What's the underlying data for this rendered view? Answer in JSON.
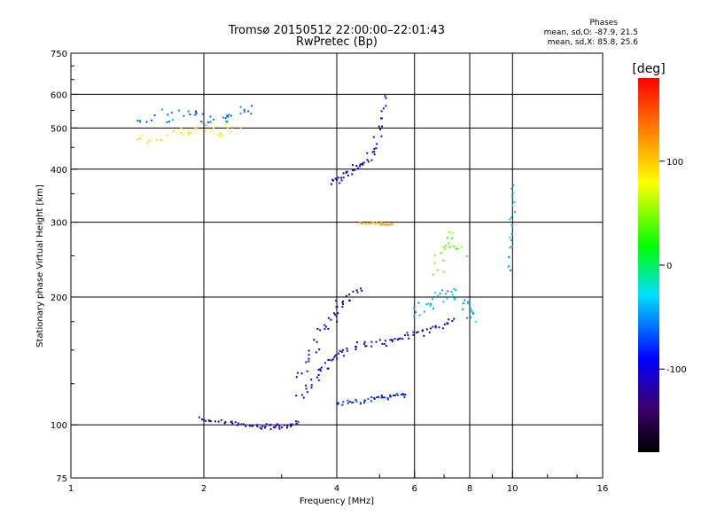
{
  "header": {
    "title_line1": "Tromsø 20150512 22:00:00–22:01:43",
    "title_line2": "RwPretec (Bp)",
    "stats_title": "Phases",
    "stats_line1": "mean, sd,O: -87.9, 21.5",
    "stats_line2": "mean, sd,X:  85.8, 25.6"
  },
  "chart_data": {
    "type": "scatter",
    "xlabel": "Frequency [MHz]",
    "ylabel": "Stationary phase Virtual Height [km]",
    "x_scale": "log",
    "y_scale": "log",
    "xlim": [
      1,
      16
    ],
    "ylim": [
      75,
      750
    ],
    "x_ticks": [
      1,
      2,
      4,
      6,
      8,
      10,
      16
    ],
    "x_tick_labels": [
      "1",
      "2",
      "4",
      "6",
      "8",
      "10",
      "16"
    ],
    "y_ticks": [
      75,
      100,
      200,
      300,
      400,
      500,
      600,
      750
    ],
    "y_tick_labels": [
      "75",
      "100",
      "200",
      "300",
      "400",
      "500",
      "600",
      "750"
    ],
    "grid": true,
    "colorbar": {
      "label": "[deg]",
      "range": [
        -180,
        180
      ],
      "ticks": [
        -100,
        0,
        100
      ],
      "tick_labels": [
        "-100",
        "0",
        "100"
      ]
    },
    "traces": [
      {
        "x": [
          1.95,
          2.1,
          2.3,
          2.5,
          2.7,
          2.85,
          3.0,
          3.15,
          3.3
        ],
        "y": [
          103,
          102,
          101,
          100,
          99,
          99,
          99,
          100,
          102
        ],
        "phase": -110,
        "spread": 0.02
      },
      {
        "x": [
          3.3,
          3.5,
          3.7,
          3.9,
          4.1,
          4.4,
          4.8,
          5.2,
          5.6,
          6.0,
          6.5,
          7.0,
          7.5
        ],
        "y": [
          115,
          125,
          135,
          142,
          148,
          152,
          155,
          157,
          160,
          163,
          167,
          172,
          178
        ],
        "phase": -100,
        "spread": 0.03
      },
      {
        "x": [
          3.3,
          3.5,
          3.7,
          3.9,
          4.1,
          4.3,
          4.6
        ],
        "y": [
          130,
          145,
          165,
          180,
          190,
          200,
          210
        ],
        "phase": -115,
        "spread": 0.05
      },
      {
        "x": [
          4.0,
          4.3,
          4.6,
          4.9,
          5.2,
          5.5,
          5.8
        ],
        "y": [
          112,
          113,
          114,
          115,
          116,
          117,
          118
        ],
        "phase": -80,
        "spread": 0.02
      },
      {
        "x": [
          3.9,
          4.1,
          4.3,
          4.5,
          4.7,
          4.9,
          5.05,
          5.15
        ],
        "y": [
          370,
          380,
          390,
          405,
          420,
          450,
          520,
          600
        ],
        "phase": -105,
        "spread": 0.03
      },
      {
        "x": [
          4.5,
          4.8,
          5.1,
          5.4
        ],
        "y": [
          298,
          298,
          297,
          296
        ],
        "phase": 110,
        "spread": 0.01
      },
      {
        "x": [
          1.4,
          1.6,
          1.8,
          2.0,
          2.2,
          2.4,
          2.6
        ],
        "y": [
          520,
          530,
          540,
          530,
          520,
          540,
          560
        ],
        "phase": -60,
        "spread": 0.06
      },
      {
        "x": [
          1.4,
          1.6,
          1.8,
          2.0,
          2.2,
          2.4
        ],
        "y": [
          480,
          470,
          490,
          500,
          480,
          510
        ],
        "phase": 90,
        "spread": 0.05
      },
      {
        "x": [
          6.0,
          6.4,
          6.8,
          7.2,
          7.6,
          8.0,
          8.4
        ],
        "y": [
          180,
          190,
          200,
          205,
          195,
          185,
          175
        ],
        "phase": -40,
        "spread": 0.06
      },
      {
        "x": [
          6.6,
          7.0,
          7.4,
          7.8
        ],
        "y": [
          230,
          260,
          280,
          250
        ],
        "phase": 40,
        "spread": 0.06
      },
      {
        "x": [
          9.8,
          9.9,
          10.0,
          10.0
        ],
        "y": [
          230,
          270,
          320,
          380
        ],
        "phase": -40,
        "spread": 0.02
      }
    ]
  }
}
